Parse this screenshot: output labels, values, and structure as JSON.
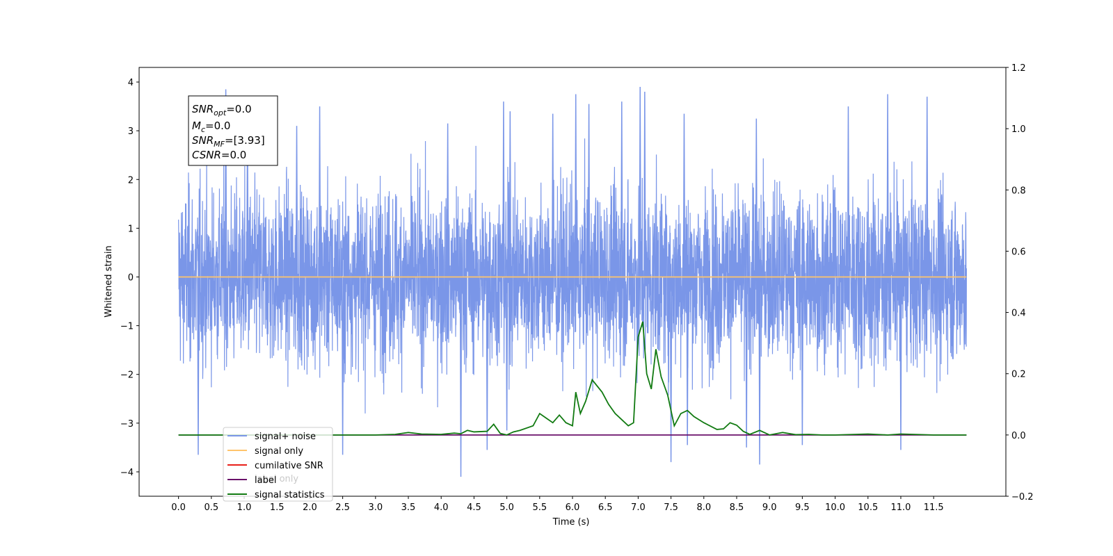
{
  "chart_data": {
    "type": "line",
    "xlabel": "Time (s)",
    "ylabel": "Whitened strain",
    "xlim": [
      -0.6,
      12.6
    ],
    "ylim": [
      -4.5,
      4.3
    ],
    "y2lim": [
      -0.2,
      1.2
    ],
    "x_ticks": [
      "0.0",
      "0.5",
      "1.0",
      "1.5",
      "2.0",
      "2.5",
      "3.0",
      "3.5",
      "4.0",
      "4.5",
      "5.0",
      "5.5",
      "6.0",
      "6.5",
      "7.0",
      "7.5",
      "8.0",
      "8.5",
      "9.0",
      "9.5",
      "10.0",
      "10.5",
      "11.0",
      "11.5"
    ],
    "y_ticks": [
      "4",
      "3",
      "2",
      "1",
      "0",
      "−1",
      "−2",
      "−3",
      "−4"
    ],
    "y2_ticks": [
      "1.2",
      "1.0",
      "0.8",
      "0.6",
      "0.4",
      "0.2",
      "0.0",
      "−0.2"
    ],
    "annotation": {
      "line1_main": "SNR",
      "line1_sub": "opt",
      "line1_val": "=0.0",
      "line2_main": "M",
      "line2_sub": "c",
      "line2_val": "=0.0",
      "line3_main": "SNR",
      "line3_sub": "MF",
      "line3_val": "=[3.93]",
      "line4_main": "CSNR",
      "line4_val": "=0.0"
    },
    "legend": {
      "placement": "lower-left",
      "items": [
        {
          "label": "signal+ noise",
          "color": "#7a96e8"
        },
        {
          "label": "signal only",
          "color": "#ffc46b"
        },
        {
          "label": "cumilative SNR",
          "color": "#e8201a"
        },
        {
          "label": "label",
          "color": "#6a106a"
        },
        {
          "label": "signal statistics",
          "color": "#117a11"
        }
      ],
      "occluded_text": "label only"
    },
    "series": [
      {
        "name": "signal+ noise",
        "axis": "left",
        "color": "#7a96e8",
        "noise_x_range": [
          0.0,
          12.0
        ],
        "peaks": [
          {
            "x": 0.72,
            "y": 3.85
          },
          {
            "x": 1.05,
            "y": 3.3
          },
          {
            "x": 1.8,
            "y": 3.1
          },
          {
            "x": 2.15,
            "y": 3.5
          },
          {
            "x": 4.1,
            "y": 3.15
          },
          {
            "x": 4.95,
            "y": 3.6
          },
          {
            "x": 5.05,
            "y": 3.4
          },
          {
            "x": 5.7,
            "y": 3.35
          },
          {
            "x": 6.05,
            "y": 3.75
          },
          {
            "x": 6.25,
            "y": 3.55
          },
          {
            "x": 6.75,
            "y": 3.6
          },
          {
            "x": 7.03,
            "y": 3.9
          },
          {
            "x": 7.1,
            "y": 3.8
          },
          {
            "x": 7.7,
            "y": 3.35
          },
          {
            "x": 8.8,
            "y": 3.25
          },
          {
            "x": 10.2,
            "y": 3.5
          },
          {
            "x": 10.8,
            "y": 3.75
          },
          {
            "x": 11.4,
            "y": 3.7
          }
        ],
        "troughs": [
          {
            "x": 0.3,
            "y": -3.65
          },
          {
            "x": 2.5,
            "y": -3.65
          },
          {
            "x": 4.3,
            "y": -4.1
          },
          {
            "x": 4.7,
            "y": -3.55
          },
          {
            "x": 5.0,
            "y": -3.15
          },
          {
            "x": 7.5,
            "y": -3.8
          },
          {
            "x": 7.75,
            "y": -3.45
          },
          {
            "x": 8.65,
            "y": -3.5
          },
          {
            "x": 8.85,
            "y": -3.85
          },
          {
            "x": 9.5,
            "y": -3.45
          },
          {
            "x": 11.0,
            "y": -3.55
          }
        ]
      },
      {
        "name": "signal only",
        "axis": "left",
        "color": "#ffc46b",
        "x": [
          0.0,
          12.0
        ],
        "y": [
          0.0,
          0.0
        ]
      },
      {
        "name": "label",
        "axis": "right",
        "color": "#6a106a",
        "x": [
          0.0,
          12.0
        ],
        "y": [
          0.0,
          0.0
        ]
      },
      {
        "name": "signal statistics",
        "axis": "right",
        "color": "#117a11",
        "x": [
          0.0,
          3.0,
          3.3,
          3.5,
          3.7,
          4.0,
          4.2,
          4.3,
          4.4,
          4.5,
          4.7,
          4.8,
          4.9,
          5.0,
          5.1,
          5.2,
          5.4,
          5.5,
          5.6,
          5.7,
          5.8,
          5.9,
          6.0,
          6.05,
          6.12,
          6.2,
          6.3,
          6.45,
          6.55,
          6.65,
          6.75,
          6.85,
          6.93,
          7.0,
          7.07,
          7.13,
          7.2,
          7.27,
          7.35,
          7.45,
          7.55,
          7.65,
          7.75,
          7.85,
          8.0,
          8.2,
          8.3,
          8.4,
          8.5,
          8.6,
          8.7,
          8.85,
          9.0,
          9.2,
          9.4,
          9.6,
          9.8,
          10.0,
          10.5,
          10.8,
          11.0,
          11.5,
          12.0
        ],
        "y": [
          0.0,
          0.0,
          0.002,
          0.008,
          0.003,
          0.002,
          0.006,
          0.004,
          0.015,
          0.01,
          0.012,
          0.035,
          0.005,
          0.0,
          0.01,
          0.015,
          0.03,
          0.07,
          0.055,
          0.04,
          0.065,
          0.04,
          0.03,
          0.14,
          0.07,
          0.11,
          0.18,
          0.14,
          0.1,
          0.07,
          0.05,
          0.03,
          0.04,
          0.32,
          0.37,
          0.2,
          0.15,
          0.28,
          0.19,
          0.13,
          0.03,
          0.07,
          0.08,
          0.06,
          0.04,
          0.018,
          0.02,
          0.04,
          0.032,
          0.012,
          0.002,
          0.015,
          0.0,
          0.008,
          0.001,
          0.002,
          0.0,
          0.0,
          0.003,
          0.0,
          0.003,
          0.0,
          0.0
        ]
      }
    ]
  }
}
